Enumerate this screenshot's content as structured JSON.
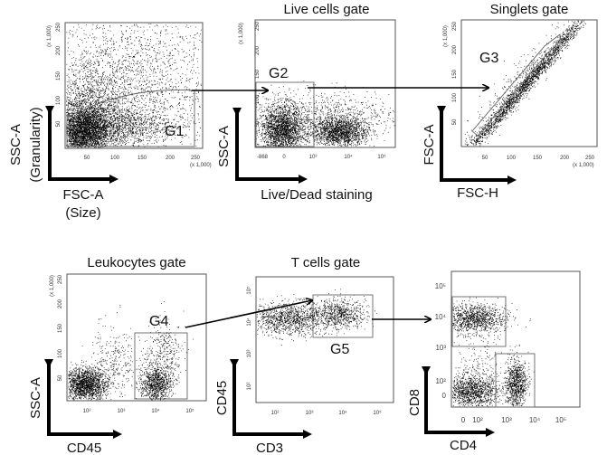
{
  "panels": [
    {
      "id": "p1",
      "title": "",
      "gate": "G1",
      "x_label": "FSC-A",
      "x_sub": "(Size)",
      "y_label": "SSC-A",
      "y_sub": "(Granularity)",
      "x_ticks": [
        "50",
        "100",
        "150",
        "200",
        "250"
      ],
      "y_ticks": [
        "50",
        "100",
        "150",
        "200",
        "250"
      ],
      "x_scale": "(x 1,000)",
      "y_scale": "(x 1,000)"
    },
    {
      "id": "p2",
      "title": "Live cells gate",
      "gate": "G2",
      "x_label": "Live/Dead staining",
      "y_label": "SSC-A",
      "x_ticks": [
        "-868",
        "0",
        "10³",
        "10⁴",
        "10⁵"
      ],
      "y_ticks": [
        "50",
        "100",
        "150",
        "200",
        "250"
      ],
      "y_scale": "(x 1,000)"
    },
    {
      "id": "p3",
      "title": "Singlets gate",
      "gate": "G3",
      "x_label": "FSC-H",
      "y_label": "FSC-A",
      "x_ticks": [
        "50",
        "100",
        "150",
        "200",
        "250"
      ],
      "y_ticks": [
        "50",
        "100",
        "150",
        "200",
        "250"
      ],
      "x_scale": "(x 1,000)",
      "y_scale": "(x 1,000)"
    },
    {
      "id": "p4",
      "title": "Leukocytes gate",
      "gate": "G4",
      "x_label": "CD45",
      "y_label": "SSC-A",
      "x_ticks": [
        "10²",
        "10³",
        "10⁴",
        "10⁵"
      ],
      "y_ticks": [
        "50",
        "100",
        "150",
        "200",
        "250"
      ],
      "y_scale": "(x 1,000)"
    },
    {
      "id": "p5",
      "title": "T cells gate",
      "gate": "G5",
      "x_label": "CD3",
      "y_label": "CD45",
      "x_ticks": [
        "10²",
        "10³",
        "10⁴",
        "10⁵"
      ],
      "y_ticks": [
        "10²",
        "10³",
        "10⁴",
        "10⁵"
      ]
    },
    {
      "id": "p6",
      "title": "",
      "gate": "",
      "x_label": "CD4",
      "y_label": "CD8",
      "x_ticks": [
        "0",
        "10²",
        "10³",
        "10⁴",
        "10⁵"
      ],
      "y_ticks": [
        "0",
        "10²",
        "10³",
        "10⁴",
        "10⁵"
      ]
    }
  ]
}
